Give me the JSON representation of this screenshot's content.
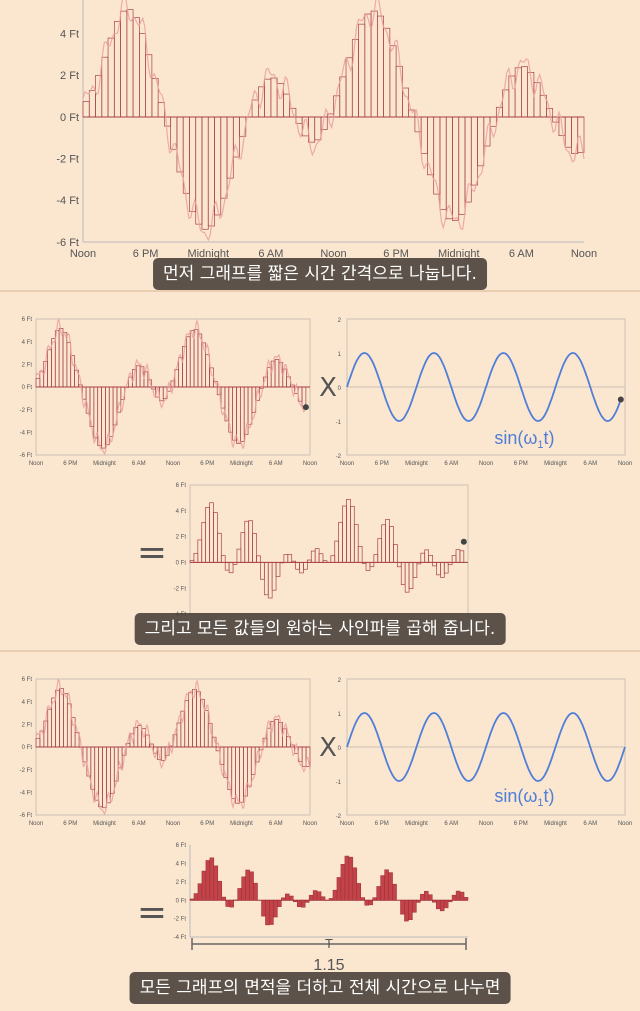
{
  "captions": {
    "panel1": "먼저 그래프를 짧은 시간 간격으로 나눕니다.",
    "panel2": "그리고 모든 값들의 원하는 사인파를 곱해 줍니다.",
    "panel3": "모든 그래프의 면적을 더하고 전체 시간으로 나누면"
  },
  "symbols": {
    "times": "X",
    "equals": "="
  },
  "sine_label": {
    "base": "sin(ω",
    "sub": "1",
    "tail": "t)"
  },
  "period_label": "T",
  "area_value": "1.15",
  "colors": {
    "background": "#fbe6cf",
    "signal": "#c2434a",
    "signal_light": "#eaa0a0",
    "sine": "#4f7fd8",
    "caption_bg": "#463e38"
  },
  "chart_data": [
    {
      "type": "bar",
      "id": "signal-large",
      "x_ticks": [
        "Noon",
        "6 PM",
        "Midnight",
        "6 AM",
        "Noon",
        "6 PM",
        "Midnight",
        "6 AM",
        "Noon"
      ],
      "y_ticks": [
        "-6 Ft",
        "-4 Ft",
        "-2 Ft",
        "0 Ft",
        "2 Ft",
        "4 Ft"
      ],
      "ylim": [
        -6,
        6
      ]
    },
    {
      "type": "bar",
      "id": "signal-small",
      "x_ticks": [
        "Noon",
        "6 PM",
        "Midnight",
        "6 AM",
        "Noon",
        "6 PM",
        "Midnight",
        "6 AM",
        "Noon"
      ],
      "y_ticks": [
        "-6 Ft",
        "-4 Ft",
        "-2 Ft",
        "0 Ft",
        "2 Ft",
        "4 Ft",
        "6 Ft"
      ],
      "ylim": [
        -6,
        6
      ]
    },
    {
      "type": "line",
      "id": "sine",
      "x_ticks": [
        "Noon",
        "6 PM",
        "Midnight",
        "6 AM",
        "Noon",
        "6 PM",
        "Midnight",
        "6 AM",
        "Noon"
      ],
      "y_ticks": [
        "-2",
        "-1",
        "0",
        "1",
        "2"
      ],
      "ylim": [
        -2,
        2
      ],
      "cycles": 4
    },
    {
      "type": "bar",
      "id": "product",
      "y_ticks": [
        "-4 Ft",
        "-2 Ft",
        "0 Ft",
        "2 Ft",
        "4 Ft",
        "6 Ft"
      ],
      "ylim": [
        -4,
        6
      ]
    }
  ]
}
